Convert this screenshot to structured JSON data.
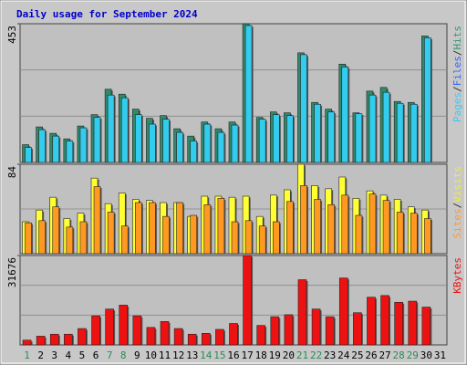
{
  "title": "Daily usage for September 2024",
  "day_colors": [
    "#2e8b57",
    "#000000",
    "#000000",
    "#000000",
    "#000000",
    "#000000",
    "#2e8b57",
    "#2e8b57",
    "#000000",
    "#000000",
    "#000000",
    "#000000",
    "#000000",
    "#2e8b57",
    "#2e8b57",
    "#000000",
    "#000000",
    "#000000",
    "#000000",
    "#000000",
    "#2e8b57",
    "#2e8b57",
    "#000000",
    "#000000",
    "#000000",
    "#000000",
    "#000000",
    "#2e8b57",
    "#2e8b57",
    "#000000",
    "#000000"
  ],
  "chart_data": [
    {
      "type": "bar",
      "ylim": [
        0,
        453
      ],
      "yticks": [
        453
      ],
      "grid": true,
      "legend": [
        "Pages",
        "/",
        "Files",
        "/",
        "Hits"
      ],
      "legend_colors": [
        "#33ccff",
        "#333333",
        "#3366ff",
        "#333333",
        "#339977"
      ],
      "series": [
        {
          "name": "Hits",
          "color": "#2e8a6c",
          "values": [
            58,
            116,
            95,
            77,
            119,
            156,
            239,
            223,
            174,
            144,
            153,
            110,
            86,
            132,
            110,
            132,
            453,
            147,
            165,
            162,
            358,
            196,
            174,
            321,
            162,
            233,
            245,
            199,
            196,
            413,
            null
          ]
        },
        {
          "name": "Files",
          "color": "#33ccee",
          "values": [
            49,
            107,
            86,
            70,
            113,
            147,
            220,
            211,
            156,
            125,
            141,
            98,
            70,
            125,
            98,
            122,
            447,
            141,
            156,
            153,
            352,
            190,
            165,
            312,
            159,
            220,
            229,
            193,
            190,
            407,
            null
          ]
        }
      ]
    },
    {
      "type": "bar",
      "ylim": [
        0,
        84
      ],
      "yticks": [
        84
      ],
      "grid": true,
      "legend": [
        "Sites",
        "/",
        "Visits"
      ],
      "legend_colors": [
        "#ff9933",
        "#333333",
        "#eeee33"
      ],
      "series": [
        {
          "name": "Visits",
          "color": "#ffff33",
          "values": [
            30,
            41,
            53,
            33,
            38,
            71,
            47,
            57,
            51,
            50,
            48,
            48,
            35,
            54,
            54,
            53,
            54,
            35,
            55,
            60,
            84,
            64,
            61,
            72,
            52,
            59,
            55,
            51,
            44,
            41,
            null
          ]
        },
        {
          "name": "Sites",
          "color": "#ff9922",
          "values": [
            29,
            31,
            44,
            25,
            30,
            63,
            39,
            26,
            48,
            48,
            35,
            48,
            36,
            46,
            52,
            30,
            31,
            26,
            30,
            49,
            64,
            51,
            46,
            55,
            36,
            56,
            50,
            39,
            38,
            33,
            null
          ]
        }
      ]
    },
    {
      "type": "bar",
      "ylim": [
        0,
        31676
      ],
      "yticks": [
        31676
      ],
      "grid": true,
      "legend": [
        "KBytes"
      ],
      "legend_colors": [
        "#ee1111"
      ],
      "categories": [
        "1",
        "2",
        "3",
        "4",
        "5",
        "6",
        "7",
        "8",
        "9",
        "10",
        "11",
        "12",
        "13",
        "14",
        "15",
        "16",
        "17",
        "18",
        "19",
        "20",
        "21",
        "22",
        "23",
        "24",
        "25",
        "26",
        "27",
        "28",
        "29",
        "30",
        "31"
      ],
      "series": [
        {
          "name": "KBytes",
          "color": "#ee1111",
          "values": [
            1700,
            3100,
            3800,
            3800,
            5800,
            10300,
            12700,
            14100,
            10300,
            6200,
            8300,
            5800,
            3800,
            4100,
            5500,
            7600,
            31676,
            6900,
            10000,
            10700,
            23100,
            12700,
            10000,
            23700,
            11400,
            16900,
            17500,
            15100,
            15500,
            13400,
            null
          ]
        }
      ]
    }
  ]
}
